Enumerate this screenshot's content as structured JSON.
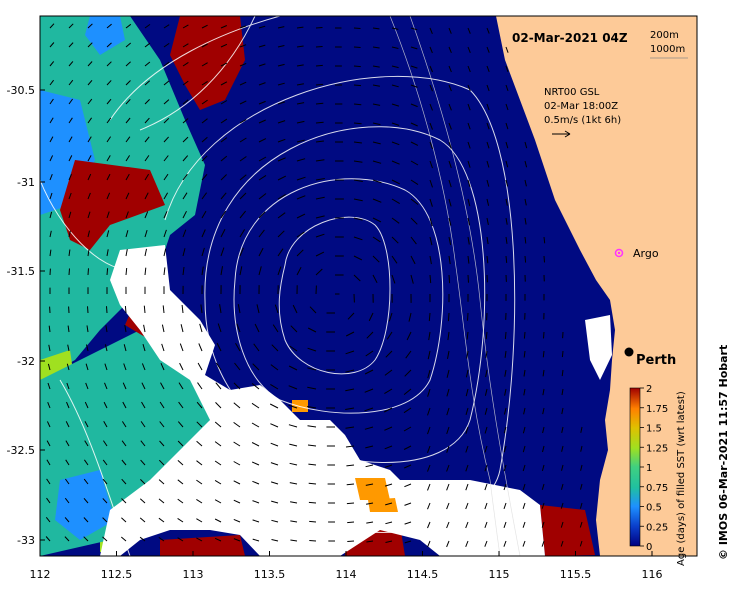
{
  "map": {
    "timestamp": "02-Mar-2021 04Z",
    "depth_contours": [
      "200m",
      "1000m"
    ],
    "current_source": "NRT00 GSL",
    "current_time": "02-Mar 18:00Z",
    "current_scale": "0.5m/s (1kt 6h)",
    "x_ticks": [
      "112",
      "112.5",
      "113",
      "113.5",
      "114",
      "114.5",
      "115",
      "115.5",
      "116"
    ],
    "y_ticks": [
      "-30.5",
      "-31",
      "-31.5",
      "-32",
      "-32.5",
      "-33"
    ],
    "places": [
      {
        "label": "Argo",
        "marker": "argo-float-marker",
        "color": "#ff33ff"
      },
      {
        "label": "Perth",
        "marker": "city-dot-marker",
        "color": "#000000"
      }
    ],
    "credit": "© IMOS 06-Mar-2021 11:57 Hobart"
  },
  "colorbar": {
    "title": "Age (days) of filled SST (wrt latest)",
    "ticks": [
      "0",
      "0.25",
      "0.5",
      "0.75",
      "1",
      "1.25",
      "1.5",
      "1.75",
      "2"
    ],
    "range": [
      0,
      2
    ],
    "colors": [
      "#000080",
      "#0a3cc8",
      "#1e90ff",
      "#20c0a0",
      "#40d080",
      "#a0e020",
      "#e0c000",
      "#ff8000",
      "#c04000",
      "#a00000"
    ]
  },
  "colors": {
    "land": "#fdca98",
    "ocean_fresh": "#000a82",
    "no_data": "#ffffff",
    "old_fill": "#a00000",
    "mid_fill": "#20b8a0"
  }
}
